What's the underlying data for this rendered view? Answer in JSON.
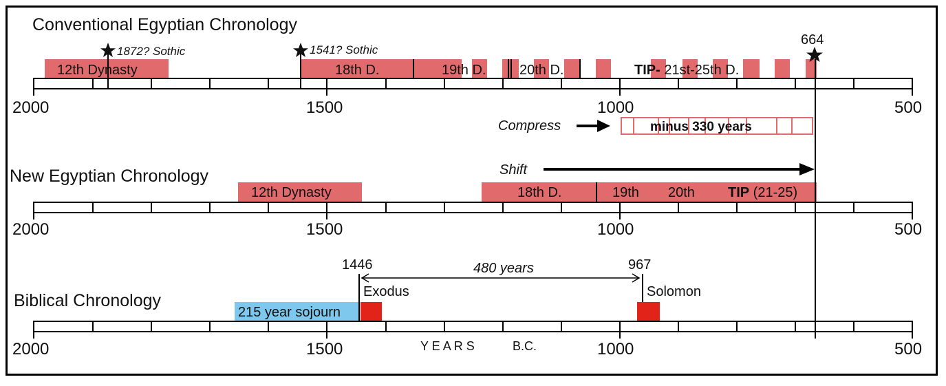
{
  "rows": {
    "conventional": {
      "title": "Conventional Egyptian Chronology",
      "bars": {
        "dyn12": "12th Dynasty",
        "d18": "18th D.",
        "d19": "19th D.",
        "d20": "20th D.",
        "tip_bold": "TIP-",
        "tip_rest": " 21st-25th D."
      },
      "sothic1": "1872? Sothic",
      "sothic2": "1541? Sothic",
      "marker_664": "664"
    },
    "new": {
      "title": "New Egyptian Chronology",
      "bars": {
        "dyn12": "12th Dynasty",
        "d18": "18th D.",
        "d19": "19th",
        "d20": "20th",
        "tip_bold": "TIP",
        "tip_rest": " (21-25)"
      }
    },
    "biblical": {
      "title": "Biblical Chronology",
      "sojourn": "215 year sojourn",
      "exodus_year": "1446",
      "exodus": "Exodus",
      "solomon_year": "967",
      "solomon": "Solomon",
      "span": "480 years"
    }
  },
  "compress_label": "Compress",
  "compress_box": "minus 330 years",
  "shift_label": "Shift",
  "axis_labels": [
    "2000",
    "1500",
    "1000",
    "500"
  ],
  "axis_caption_1": "Y E A R S",
  "axis_caption_2": "B.C.",
  "colors": {
    "dynasty_bar": "#e06a6c",
    "sojourn": "#7dc8ec",
    "biblical_event": "#e2231a"
  }
}
